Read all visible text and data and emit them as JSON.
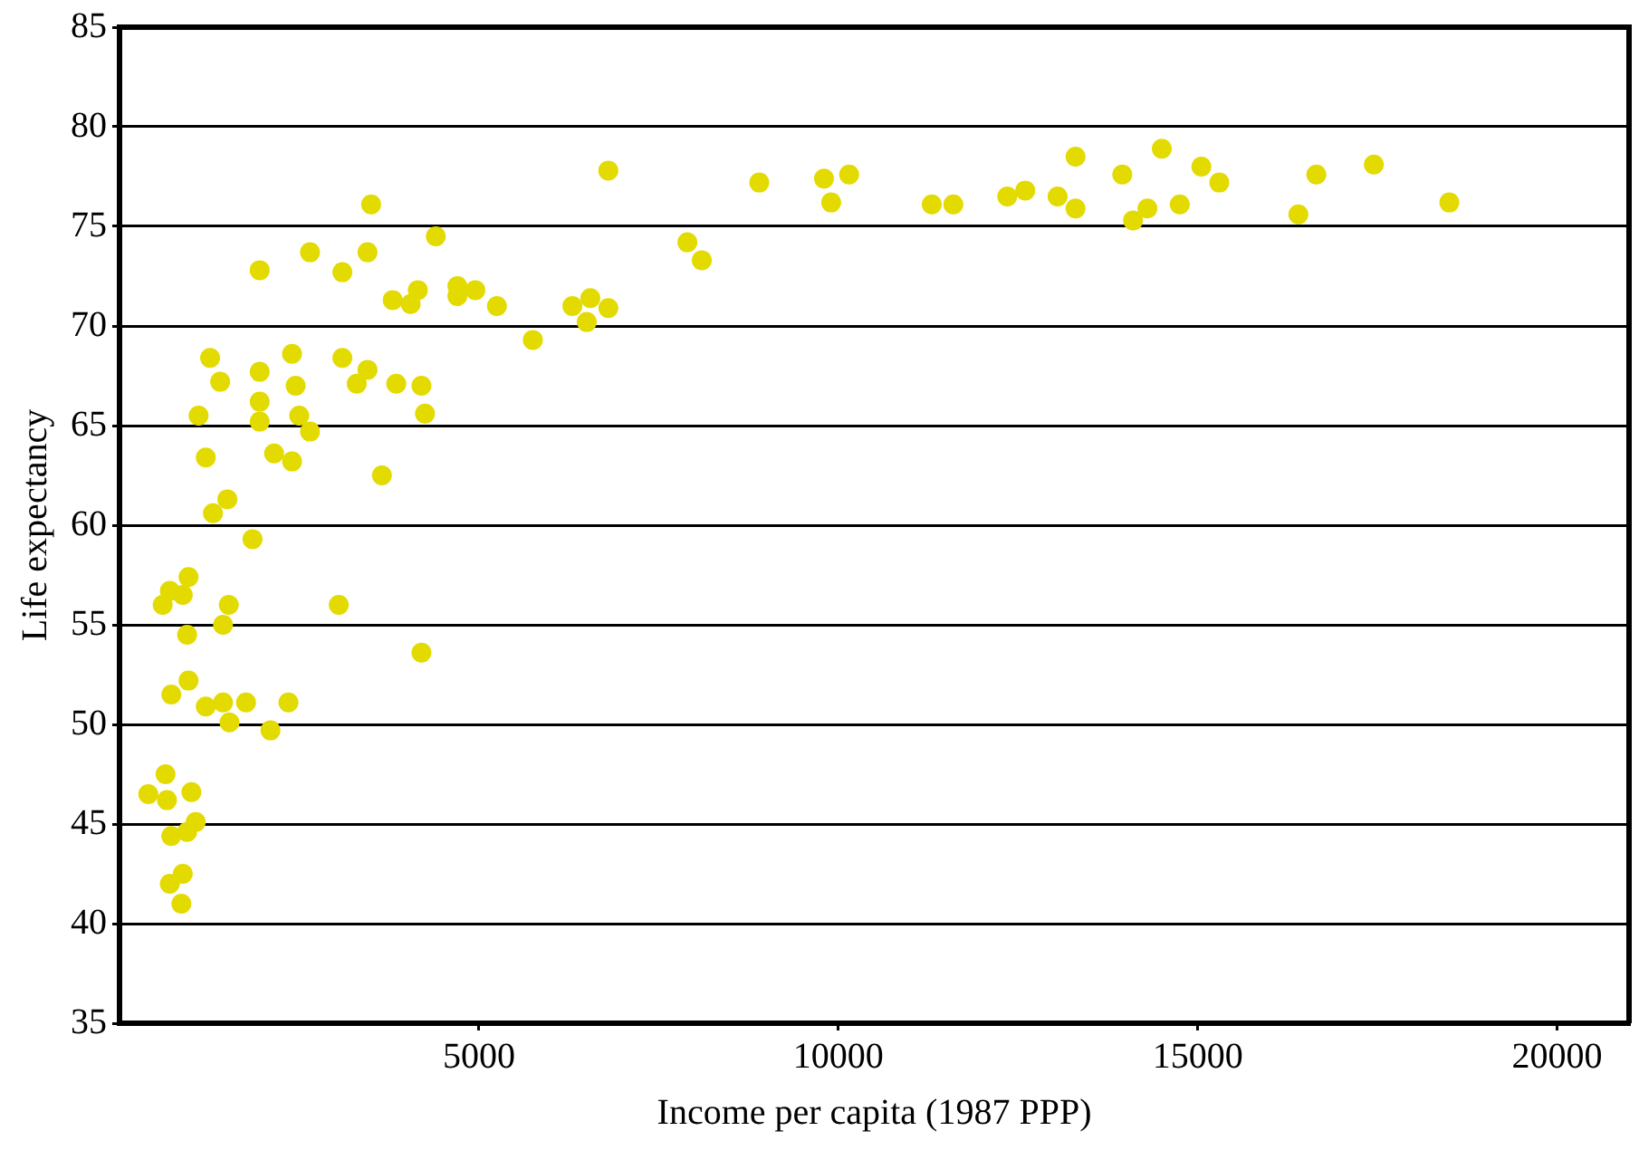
{
  "chart_data": {
    "type": "scatter",
    "xlabel": "Income per capita (1987 PPP)",
    "ylabel": "Life expectancy",
    "xlim": [
      0,
      21000
    ],
    "xticks": [
      5000,
      10000,
      15000,
      20000
    ],
    "ylim": [
      35,
      85
    ],
    "yticks": [
      35,
      40,
      45,
      50,
      55,
      60,
      65,
      70,
      75,
      80,
      85
    ],
    "grid": "y",
    "legend": false,
    "marker": "circle",
    "series": [
      {
        "color": "#e3da00",
        "x": [
          400,
          640,
          660,
          720,
          700,
          880,
          860,
          940,
          1060,
          1000,
          600,
          700,
          880,
          960,
          940,
          960,
          720,
          1200,
          1440,
          1440,
          1520,
          1530,
          1760,
          2100,
          2350,
          1300,
          1500,
          1850,
          1200,
          1100,
          1260,
          1400,
          1950,
          1950,
          1950,
          2150,
          2400,
          2400,
          2450,
          2500,
          2650,
          1950,
          2650,
          3100,
          3100,
          3300,
          3450,
          3050,
          4200,
          3650,
          3500,
          3450,
          4400,
          3850,
          4200,
          4250,
          3800,
          4050,
          4150,
          4700,
          4700,
          4950,
          5250,
          5750,
          6300,
          6500,
          6550,
          6800,
          6800,
          7900,
          8100,
          8900,
          9800,
          9900,
          10150,
          11300,
          11600,
          12350,
          12600,
          13050,
          13300,
          13300,
          13950,
          14100,
          14300,
          14500,
          14750,
          15050,
          15300,
          16400,
          16650,
          17450,
          18500
        ],
        "values": [
          46.5,
          47.5,
          46.2,
          44.4,
          42,
          42.5,
          41,
          44.6,
          45.1,
          46.6,
          56,
          56.7,
          56.5,
          57.4,
          54.5,
          52.2,
          51.5,
          50.9,
          51.1,
          55,
          56,
          50.1,
          51.1,
          49.7,
          51.1,
          60.6,
          61.3,
          59.3,
          63.4,
          65.5,
          68.4,
          67.2,
          65.2,
          66.2,
          67.7,
          63.6,
          63.2,
          68.6,
          67,
          65.5,
          64.7,
          72.8,
          73.7,
          72.7,
          68.4,
          67.1,
          67.8,
          56,
          53.6,
          62.5,
          76.1,
          73.7,
          74.5,
          67.1,
          67,
          65.6,
          71.3,
          71.1,
          71.8,
          72,
          71.5,
          71.8,
          71,
          69.3,
          71,
          70.2,
          71.4,
          70.9,
          77.8,
          74.2,
          73.3,
          77.2,
          77.4,
          76.2,
          77.6,
          76.1,
          76.1,
          76.5,
          76.8,
          76.5,
          78.5,
          75.9,
          77.6,
          75.3,
          75.9,
          78.9,
          76.1,
          78,
          77.2,
          75.6,
          77.6,
          78.1,
          76.2
        ]
      }
    ]
  }
}
